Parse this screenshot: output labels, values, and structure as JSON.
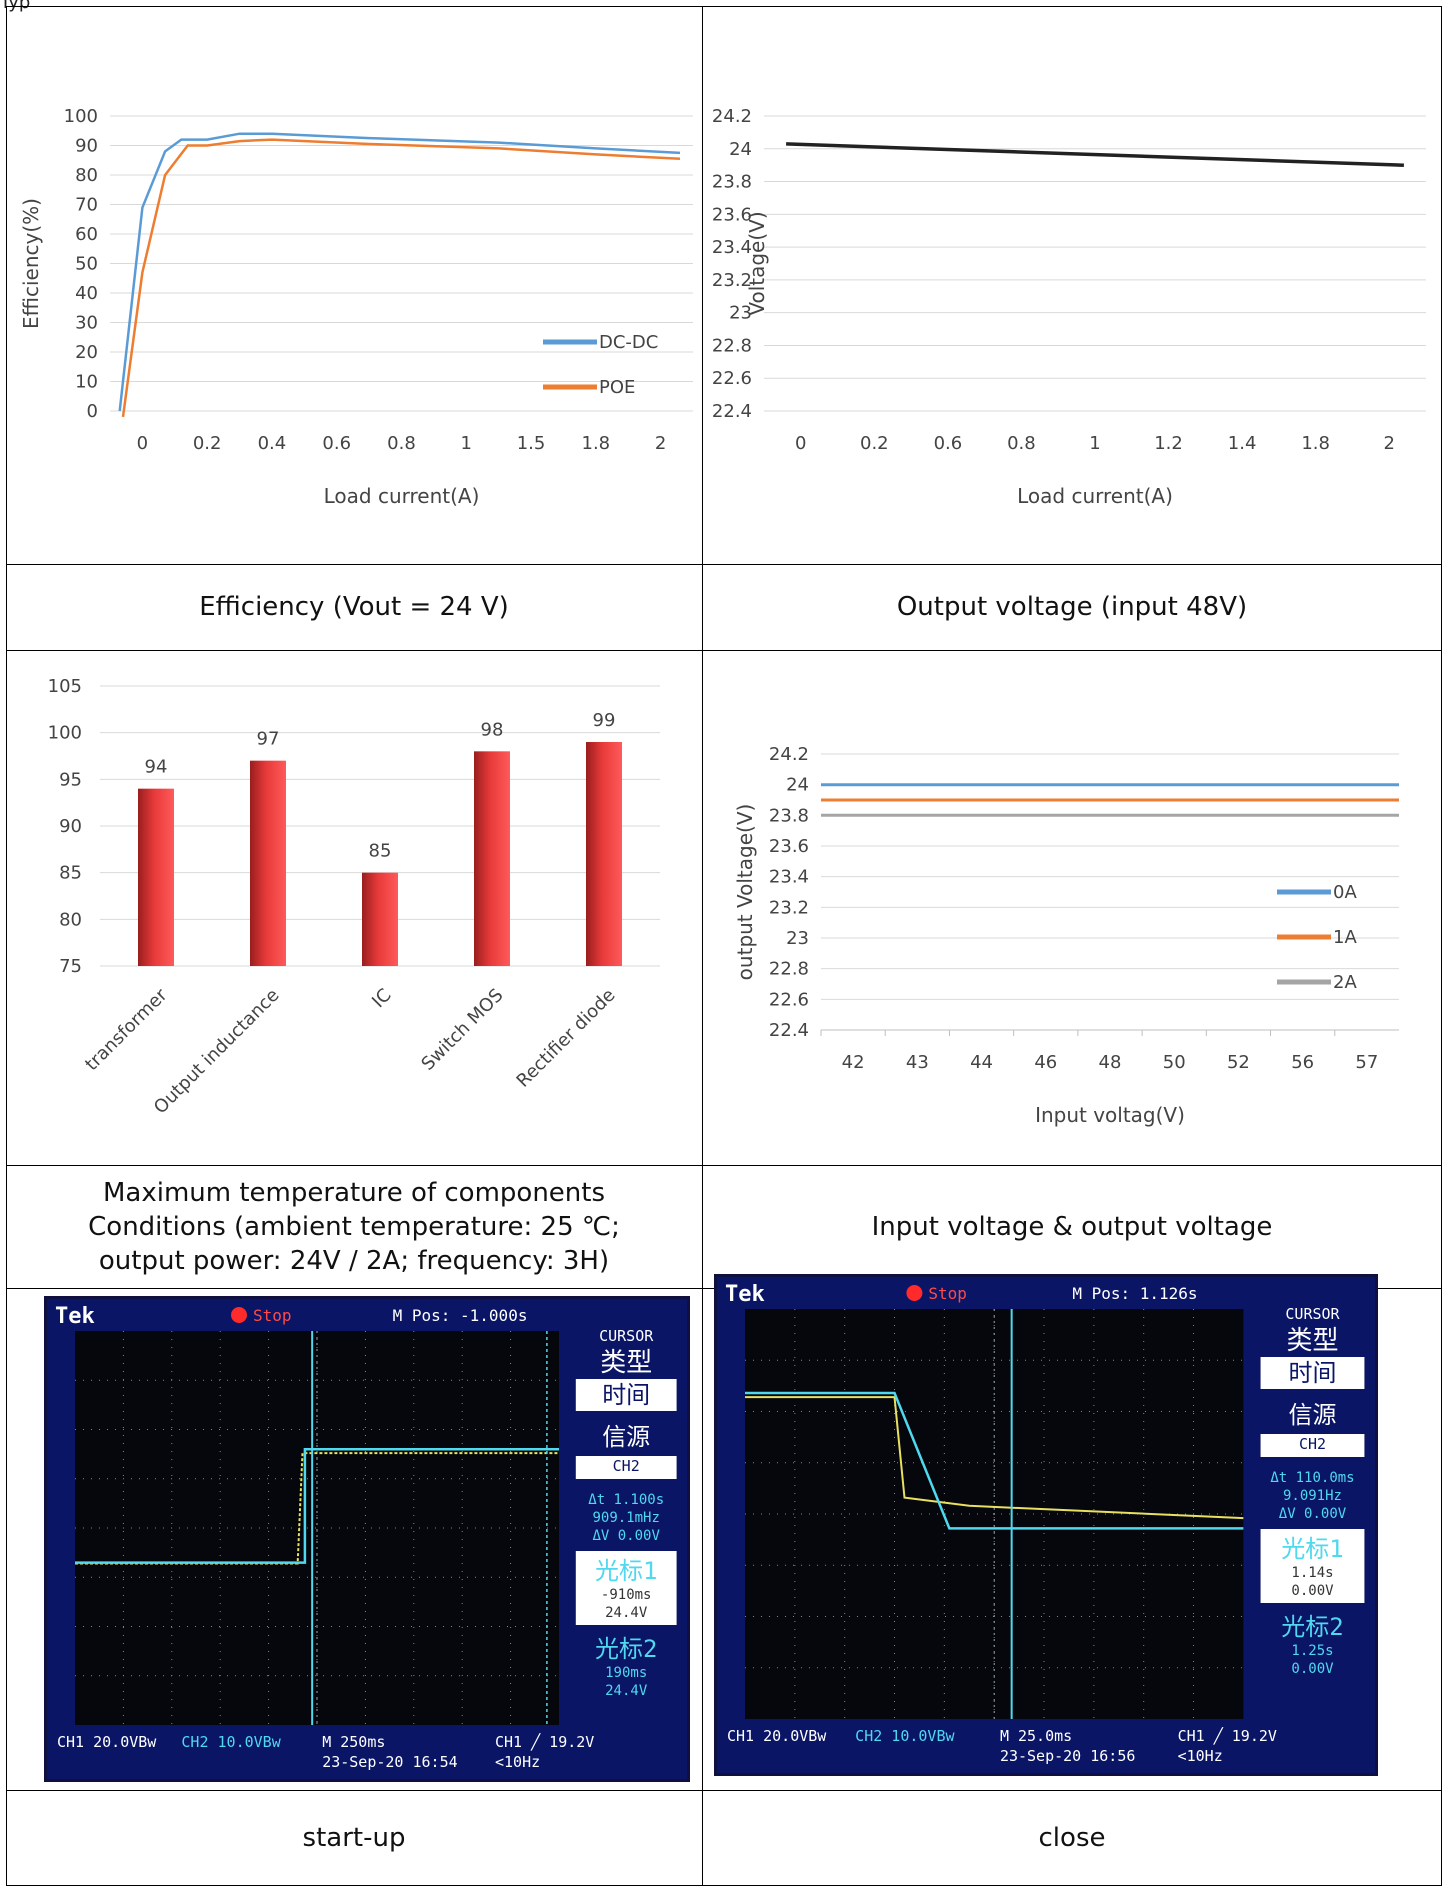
{
  "page": {
    "top_note": "Typ",
    "captions": {
      "efficiency": "Efficiency (Vout = 24 V)",
      "output_voltage": "Output voltage (input 48V)",
      "max_temp_line1": "Maximum temperature of components",
      "max_temp_line2": "Conditions (ambient temperature: 25 ℃;",
      "max_temp_line3": "output power: 24V / 2A; frequency: 3H)",
      "input_output": "Input voltage & output voltage",
      "startup": "start-up",
      "close": "close"
    }
  },
  "chart_data": [
    {
      "id": "efficiency",
      "type": "line",
      "xlabel": "Load current(A)",
      "ylabel": "Efficiency(%)",
      "categories": [
        "0",
        "0.2",
        "0.4",
        "0.6",
        "0.8",
        "1",
        "1.5",
        "1.8",
        "2"
      ],
      "ylim": [
        0,
        100
      ],
      "yticks": [
        "0",
        "10",
        "20",
        "30",
        "40",
        "50",
        "60",
        "70",
        "80",
        "90",
        "100"
      ],
      "grid": true,
      "legend": "right",
      "series": [
        {
          "name": "DC-DC",
          "color": "#5b9bd5",
          "points": [
            [
              -0.35,
              0
            ],
            [
              0,
              69
            ],
            [
              0.35,
              88
            ],
            [
              0.6,
              92
            ],
            [
              1.0,
              92
            ],
            [
              1.5,
              94
            ],
            [
              2.0,
              94
            ],
            [
              3.5,
              92.5
            ],
            [
              5.5,
              91
            ],
            [
              7.0,
              89
            ],
            [
              8.3,
              87.5
            ]
          ]
        },
        {
          "name": "POE",
          "color": "#ed7d31",
          "points": [
            [
              -0.3,
              -2
            ],
            [
              0,
              47
            ],
            [
              0.35,
              80
            ],
            [
              0.7,
              90
            ],
            [
              1.0,
              90
            ],
            [
              1.5,
              91.5
            ],
            [
              2.0,
              92
            ],
            [
              3.5,
              90.5
            ],
            [
              5.5,
              89
            ],
            [
              7.0,
              87
            ],
            [
              8.3,
              85.5
            ]
          ]
        }
      ]
    },
    {
      "id": "output_voltage_48",
      "type": "line",
      "xlabel": "Load current(A)",
      "ylabel": "Voltage(V)",
      "categories": [
        "0",
        "0.2",
        "0.6",
        "0.8",
        "1",
        "1.2",
        "1.4",
        "1.8",
        "2"
      ],
      "ylim": [
        22.4,
        24.2
      ],
      "yticks": [
        "22.4",
        "22.6",
        "22.8",
        "23",
        "23.2",
        "23.4",
        "23.6",
        "23.8",
        "24",
        "24.2"
      ],
      "grid": true,
      "series": [
        {
          "name": "",
          "color": "#222222",
          "points": [
            [
              -0.2,
              24.03
            ],
            [
              8.2,
              23.9
            ]
          ]
        }
      ]
    },
    {
      "id": "max_temperature",
      "type": "bar",
      "categories": [
        "transformer",
        "Output inductance",
        "IC",
        "Switch MOS",
        "Rectifier diode"
      ],
      "values": [
        94,
        97,
        85,
        98,
        99
      ],
      "ylim": [
        75,
        105
      ],
      "yticks": [
        "75",
        "80",
        "85",
        "90",
        "95",
        "100",
        "105"
      ],
      "grid": true,
      "bar_color": "#e83a3a"
    },
    {
      "id": "input_output_voltage",
      "type": "line",
      "xlabel": "Input voltag(V)",
      "ylabel": "output Voltage(V)",
      "categories": [
        "42",
        "43",
        "44",
        "46",
        "48",
        "50",
        "52",
        "56",
        "57"
      ],
      "ylim": [
        22.4,
        24.2
      ],
      "yticks": [
        "22.4",
        "22.6",
        "22.8",
        "23",
        "23.2",
        "23.4",
        "23.6",
        "23.8",
        "24",
        "24.2"
      ],
      "grid": true,
      "legend": "right",
      "series": [
        {
          "name": "0A",
          "color": "#5b9bd5",
          "values": [
            24,
            24,
            24,
            24,
            24,
            24,
            24,
            24,
            24
          ]
        },
        {
          "name": "1A",
          "color": "#ed7d31",
          "values": [
            23.9,
            23.9,
            23.9,
            23.9,
            23.9,
            23.9,
            23.9,
            23.9,
            23.9
          ]
        },
        {
          "name": "2A",
          "color": "#a5a5a5",
          "values": [
            23.8,
            23.8,
            23.8,
            23.8,
            23.8,
            23.8,
            23.8,
            23.8,
            23.8
          ]
        }
      ]
    }
  ],
  "scopes": {
    "startup": {
      "brand": "Tek",
      "state": "Stop",
      "mpos": "M Pos: -1.000s",
      "menu_title": "CURSOR",
      "type_cn": "类型",
      "type_val": "时间",
      "source_cn": "信源",
      "source_val": "CH2",
      "delta_t": "Δt 1.100s",
      "freq": "909.1mHz",
      "delta_v": "ΔV 0.00V",
      "cursor1_cn": "光标1",
      "cursor1_t": "-910ms",
      "cursor1_v": "24.4V",
      "cursor2_cn": "光标2",
      "cursor2_t": "190ms",
      "cursor2_v": "24.4V",
      "ch1": "CH1  20.0VBw",
      "ch2": "CH2  10.0VBw",
      "timebase": "M 250ms",
      "trigger": "CH1 ╱ 19.2V",
      "date": "23-Sep-20 16:54",
      "rate": "<10Hz"
    },
    "close": {
      "brand": "Tek",
      "state": "Stop",
      "mpos": "M Pos: 1.126s",
      "menu_title": "CURSOR",
      "type_cn": "类型",
      "type_val": "时间",
      "source_cn": "信源",
      "source_val": "CH2",
      "delta_t": "Δt 110.0ms",
      "freq": "9.091Hz",
      "delta_v": "ΔV 0.00V",
      "cursor1_cn": "光标1",
      "cursor1_t": "1.14s",
      "cursor1_v": "0.00V",
      "cursor2_cn": "光标2",
      "cursor2_t": "1.25s",
      "cursor2_v": "0.00V",
      "ch1": "CH1  20.0VBw",
      "ch2": "CH2  10.0VBw",
      "timebase": "M 25.0ms",
      "trigger": "CH1 ╱ 19.2V",
      "date": "23-Sep-20 16:56",
      "rate": "<10Hz"
    }
  }
}
